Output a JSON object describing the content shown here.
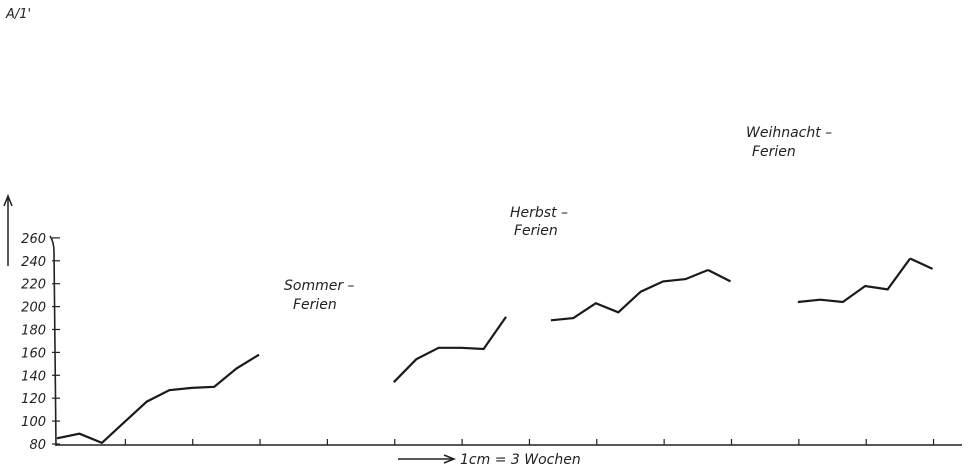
{
  "chart_data": {
    "type": "line",
    "ylabel": "A/1'",
    "ylim": [
      80,
      260
    ],
    "yticks": [
      80,
      100,
      120,
      140,
      160,
      180,
      200,
      220,
      240,
      260
    ],
    "xlabel": "1cm = 3 Wochen",
    "grid": false,
    "annotations": [
      {
        "lines": [
          "Sommer –",
          "Ferien"
        ]
      },
      {
        "lines": [
          "Herbst –",
          "Ferien"
        ]
      },
      {
        "lines": [
          "Weihnacht –",
          "Ferien"
        ]
      }
    ],
    "series": [
      {
        "x": [
          0,
          1,
          2,
          3,
          4,
          5,
          6,
          7,
          8,
          9
        ],
        "values": [
          85,
          89,
          81,
          99,
          117,
          127,
          129,
          130,
          146,
          158
        ]
      },
      {
        "x": [
          15,
          16,
          17,
          18,
          19,
          20
        ],
        "values": [
          134,
          154,
          164,
          164,
          163,
          191
        ]
      },
      {
        "x": [
          22,
          23,
          24,
          25,
          26,
          27,
          28,
          29
        ],
        "values": [
          188,
          190,
          203,
          195,
          213,
          222,
          224,
          232
        ]
      },
      {
        "x": [
          30
        ],
        "values": [
          222
        ]
      },
      {
        "x": [
          33,
          34,
          35,
          36,
          37,
          38
        ],
        "values": [
          204,
          206,
          204,
          218,
          215,
          242
        ]
      },
      {
        "x": [
          39
        ],
        "values": [
          233
        ]
      }
    ]
  }
}
